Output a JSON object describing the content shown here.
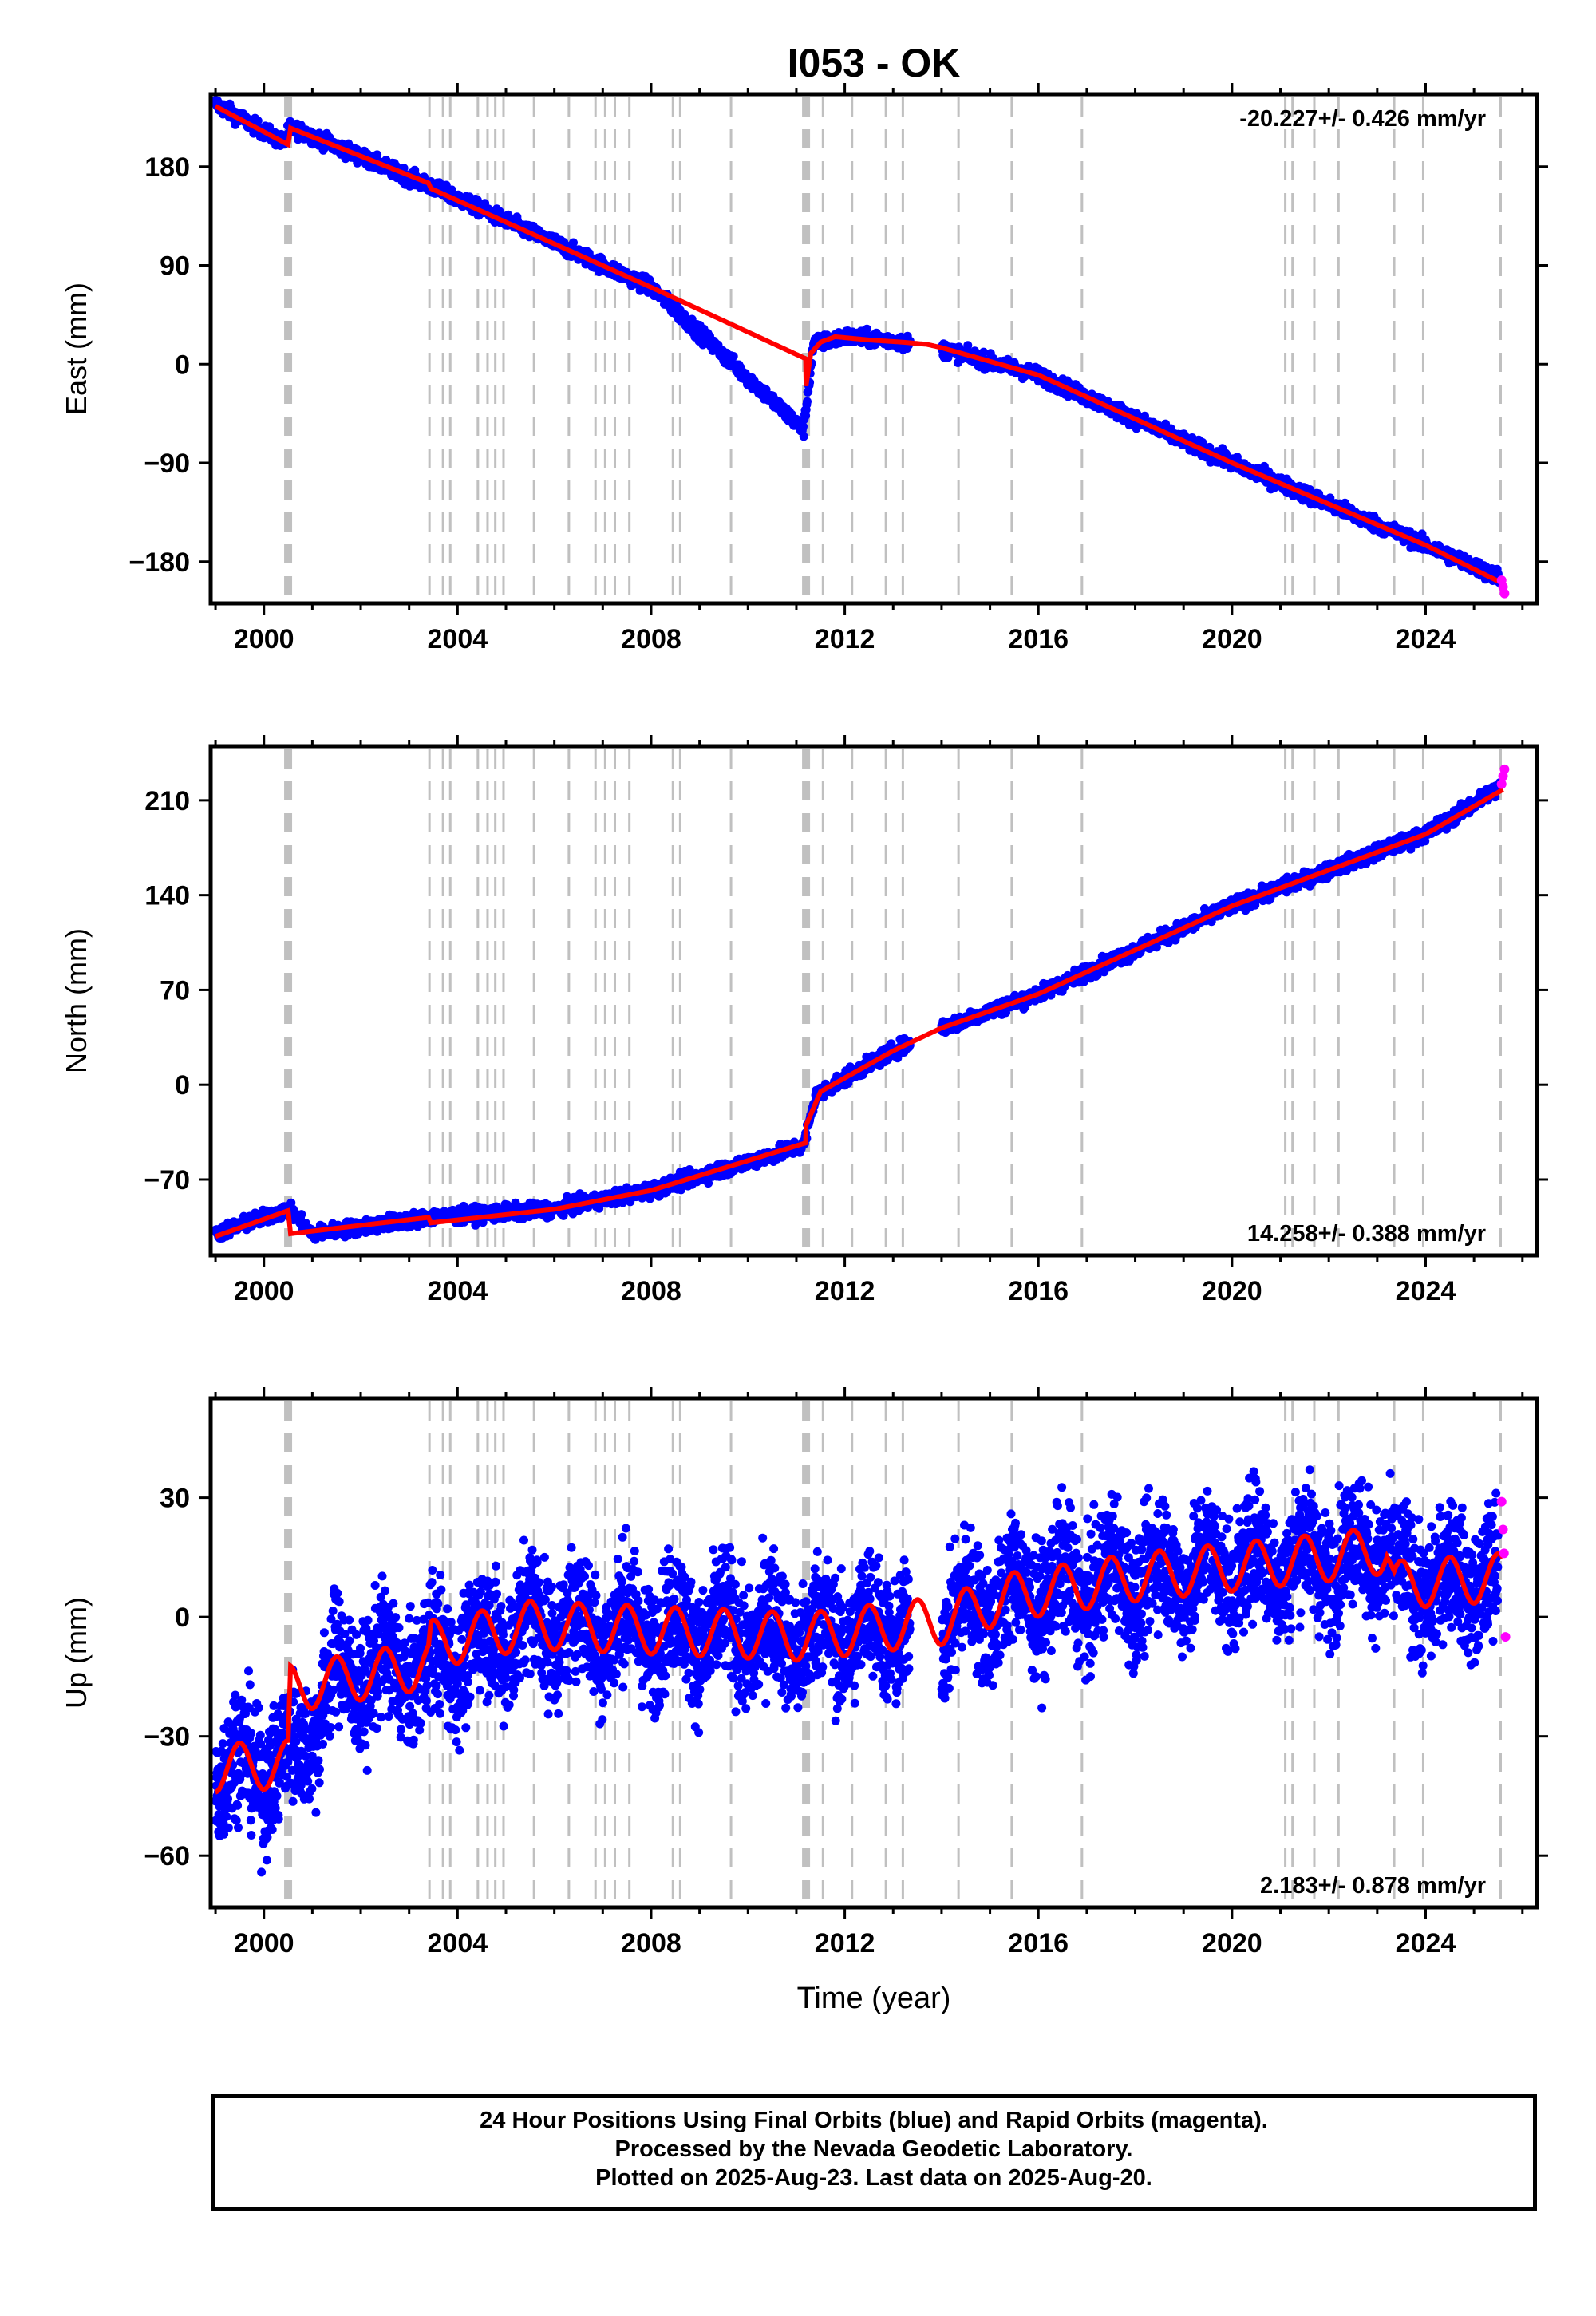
{
  "title": "I053 - OK",
  "xlabel": "Time (year)",
  "footer": {
    "line1": "24 Hour Positions Using Final Orbits (blue) and Rapid Orbits (magenta).",
    "line2": "Processed by the Nevada Geodetic Laboratory.",
    "line3": "Plotted on 2025-Aug-23. Last data on 2025-Aug-20."
  },
  "colors": {
    "final": "#0000ff",
    "rapid": "#ff00ff",
    "model": "#ff0000",
    "steps": "#c0c0c0"
  },
  "step_epochs": [
    2000.5,
    2003.42,
    2003.7,
    2003.85,
    2004.42,
    2004.62,
    2004.78,
    2004.95,
    2005.58,
    2006.3,
    2006.85,
    2007.05,
    2007.25,
    2007.55,
    2008.45,
    2008.6,
    2009.65,
    2011.2,
    2011.55,
    2012.15,
    2012.85,
    2013.2,
    2014.35,
    2015.45,
    2016.9,
    2021.1,
    2021.25,
    2021.7,
    2022.2,
    2023.35,
    2023.95,
    2025.55
  ],
  "chart_data": [
    {
      "type": "scatter",
      "component": "east",
      "ylabel": "East (mm)",
      "xlim": [
        1998.9,
        2026.3
      ],
      "ylim": [
        -218,
        246
      ],
      "xticks": [
        2000,
        2004,
        2008,
        2012,
        2016,
        2020,
        2024
      ],
      "yticks": [
        180,
        90,
        0,
        -90,
        -180
      ],
      "ytick_labels": [
        "180",
        "90",
        "0",
        "−90",
        "−180"
      ],
      "rate": "-20.227+/- 0.426 mm/yr",
      "rate_position": "top-right",
      "series": [
        {
          "kind": "model",
          "x": [
            1999.0,
            2000.5,
            2000.55,
            2003.4,
            2003.45,
            2008.0,
            2011.19,
            2011.2,
            2011.3,
            2011.5,
            2011.8,
            2012.5,
            2013.2,
            2013.7,
            2014.0,
            2016.0,
            2020.0,
            2024.0,
            2025.6
          ],
          "y": [
            235,
            200,
            215,
            165,
            160,
            70,
            5,
            -20,
            10,
            20,
            25,
            22,
            20,
            18,
            15,
            -10,
            -90,
            -165,
            -200
          ]
        },
        {
          "kind": "final",
          "x": [
            1999.0,
            2000.4,
            2000.55,
            2003.4,
            2008.0,
            2011.15,
            2011.35,
            2012.0,
            2012.9,
            2014.0,
            2016.0,
            2020.0,
            2024.0,
            2025.55
          ],
          "y": [
            237,
            202,
            216,
            163,
            70,
            -60,
            18,
            25,
            22,
            14,
            -10,
            -90,
            -165,
            -195
          ]
        },
        {
          "kind": "rapid",
          "x": [
            2025.57,
            2025.6,
            2025.63
          ],
          "y": [
            -197,
            -203,
            -209
          ]
        }
      ]
    },
    {
      "type": "scatter",
      "component": "north",
      "ylabel": "North (mm)",
      "xlim": [
        1998.9,
        2026.3
      ],
      "ylim": [
        -126,
        250
      ],
      "xticks": [
        2000,
        2004,
        2008,
        2012,
        2016,
        2020,
        2024
      ],
      "yticks": [
        210,
        140,
        70,
        0,
        -70
      ],
      "ytick_labels": [
        "210",
        "140",
        "70",
        "0",
        "−70"
      ],
      "rate": "14.258+/- 0.388 mm/yr",
      "rate_position": "bottom-right",
      "series": [
        {
          "kind": "model",
          "x": [
            1999.0,
            2000.5,
            2000.55,
            2003.4,
            2003.45,
            2006.0,
            2008.0,
            2011.19,
            2011.2,
            2011.5,
            2012.0,
            2013.0,
            2014.0,
            2016.0,
            2020.0,
            2024.0,
            2025.6
          ],
          "y": [
            -112,
            -93,
            -110,
            -98,
            -102,
            -92,
            -78,
            -43,
            -30,
            -5,
            5,
            25,
            42,
            67,
            132,
            185,
            218
          ]
        },
        {
          "kind": "final",
          "x": [
            1999.0,
            2000.5,
            2001.0,
            2003.4,
            2006.0,
            2008.0,
            2011.15,
            2011.4,
            2012.0,
            2013.0,
            2014.0,
            2016.0,
            2020.0,
            2024.0,
            2025.55
          ],
          "y": [
            -110,
            -92,
            -110,
            -98,
            -92,
            -78,
            -45,
            -8,
            5,
            25,
            42,
            67,
            132,
            185,
            220
          ]
        },
        {
          "kind": "rapid",
          "x": [
            2025.57,
            2025.6,
            2025.63
          ],
          "y": [
            222,
            228,
            233
          ]
        }
      ]
    },
    {
      "type": "scatter",
      "component": "up",
      "ylabel": "Up (mm)",
      "xlim": [
        1998.9,
        2026.3
      ],
      "ylim": [
        -73,
        55
      ],
      "xticks": [
        2000,
        2004,
        2008,
        2012,
        2016,
        2020,
        2024
      ],
      "yticks": [
        30,
        0,
        -30,
        -60
      ],
      "ytick_labels": [
        "30",
        "0",
        "−30",
        "−60"
      ],
      "rate": "2.183+/- 0.878 mm/yr",
      "rate_position": "bottom-right",
      "series": [
        {
          "kind": "model_trend",
          "x": [
            1999.0,
            2000.5,
            2000.55,
            2003.4,
            2003.45,
            2005.5,
            2011.2,
            2013.2,
            2014.0,
            2015.4,
            2018.0,
            2022.0,
            2023.2,
            2023.35,
            2025.6
          ],
          "y": [
            -38,
            -37,
            -18,
            -12,
            -7,
            -2,
            -5,
            -2,
            -1,
            5,
            10,
            15,
            17,
            8,
            10
          ],
          "amplitude": 6
        },
        {
          "kind": "final",
          "x": [
            1999.0,
            2000.5,
            2001.5,
            2003.4,
            2005.5,
            2008.0,
            2011.2,
            2013.2,
            2014.0,
            2015.4,
            2018.0,
            2022.0,
            2023.2,
            2023.4,
            2025.5
          ],
          "y": [
            -38,
            -37,
            -15,
            -12,
            -2,
            -3,
            -5,
            -2,
            -1,
            5,
            10,
            15,
            17,
            8,
            10
          ],
          "scatter_mm": 8
        },
        {
          "kind": "rapid",
          "x": [
            2025.57,
            2025.6,
            2025.62,
            2025.65
          ],
          "y": [
            29,
            22,
            16,
            -5
          ]
        }
      ]
    }
  ]
}
